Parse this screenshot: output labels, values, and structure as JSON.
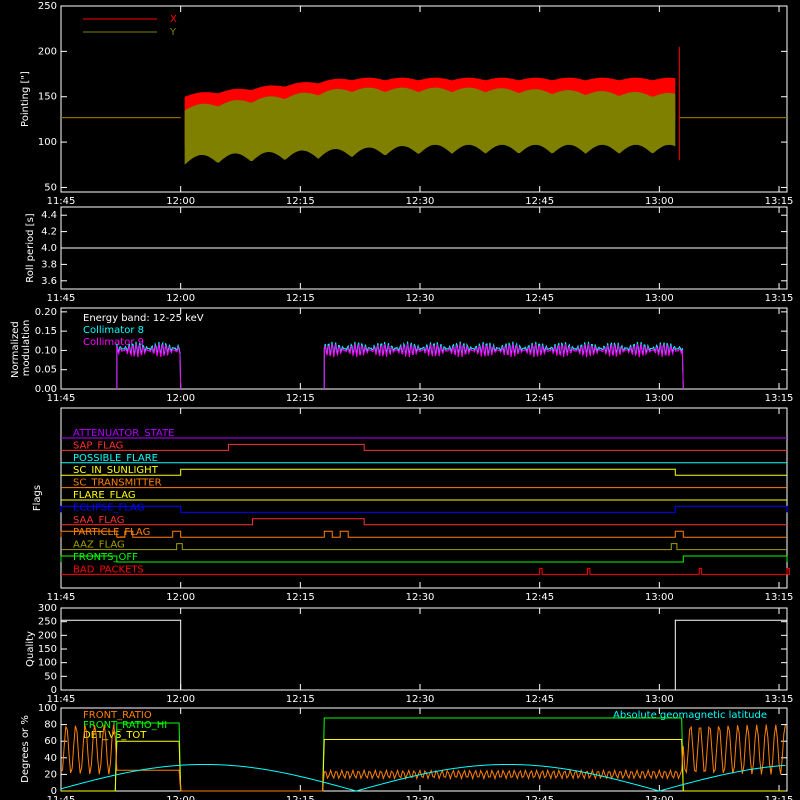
{
  "chart_data": [
    {
      "type": "area",
      "id": "pointing",
      "ylabel": "Pointing [\"]",
      "ylim": [
        45,
        250
      ],
      "yticks": [
        "50",
        "100",
        "150",
        "200",
        "250"
      ],
      "xticks": [
        "11:45",
        "12:00",
        "12:15",
        "12:30",
        "12:45",
        "13:00",
        "13:15"
      ],
      "xlim_minutes": [
        705,
        796
      ],
      "legend": {
        "position": "top-left"
      },
      "series": [
        {
          "name": "X",
          "color": "#ff0000",
          "x": [
            707,
            720,
            721.5,
            725,
            730,
            740,
            750,
            760,
            770,
            782,
            782.5,
            796
          ],
          "ymin": [
            127,
            127,
            80,
            100,
            110,
            113,
            118,
            120,
            120,
            118,
            127,
            127
          ],
          "ymax": [
            127,
            127,
            147,
            165,
            170,
            168,
            170,
            170,
            168,
            170,
            127,
            127
          ]
        },
        {
          "name": "Y",
          "color": "#7f7f00",
          "x": [
            707,
            720,
            721.5,
            725,
            730,
            740,
            750,
            760,
            770,
            782,
            782.5,
            796
          ],
          "ymin": [
            127,
            127,
            80,
            70,
            85,
            90,
            92,
            90,
            88,
            85,
            127,
            127
          ],
          "ymax": [
            127,
            127,
            145,
            150,
            155,
            158,
            160,
            158,
            150,
            140,
            127,
            127
          ]
        }
      ]
    },
    {
      "type": "line",
      "id": "roll",
      "ylabel": "Roll period [s]",
      "ylim": [
        3.5,
        4.5
      ],
      "yticks": [
        "3.6",
        "3.8",
        "4.0",
        "4.2",
        "4.4"
      ],
      "xticks": [
        "11:45",
        "12:00",
        "12:15",
        "12:30",
        "12:45",
        "13:00",
        "13:15"
      ],
      "series": [
        {
          "name": "",
          "color": "#ffffff",
          "value": 4.0
        }
      ]
    },
    {
      "type": "bar",
      "id": "modulation",
      "ylabel": "Normalized modulation",
      "ylim": [
        0,
        0.21
      ],
      "yticks": [
        "0.00",
        "0.05",
        "0.10",
        "0.15",
        "0.20"
      ],
      "xticks": [
        "11:45",
        "12:00",
        "12:15",
        "12:30",
        "12:45",
        "13:00",
        "13:15"
      ],
      "annotation": "Energy band: 12-25 keV",
      "series": [
        {
          "name": "Collimator 8",
          "color": "#00ffff",
          "segments": [
            [
              712,
              720
            ],
            [
              738,
              783
            ]
          ],
          "level": 0.105
        },
        {
          "name": "Collimator 9",
          "color": "#ff00ff",
          "segments": [
            [
              712,
              720
            ],
            [
              738,
              783
            ]
          ],
          "level": 0.1
        }
      ]
    },
    {
      "type": "table",
      "id": "flags",
      "ylabel": "Flags",
      "xticks": [
        "11:45",
        "12:00",
        "12:15",
        "12:30",
        "12:45",
        "13:00",
        "13:15"
      ],
      "flags": [
        {
          "name": "ATTENUATOR_STATE",
          "color": "#b000ff",
          "on": []
        },
        {
          "name": "SAP_FLAG",
          "color": "#ff3030",
          "on": [
            [
              726,
              743
            ]
          ]
        },
        {
          "name": "POSSIBLE_FLARE",
          "color": "#00ffff",
          "on": []
        },
        {
          "name": "SC_IN_SUNLIGHT",
          "color": "#ffff00",
          "on": [
            [
              720,
              782
            ]
          ]
        },
        {
          "name": "SC_TRANSMITTER",
          "color": "#ff8000",
          "on": []
        },
        {
          "name": "FLARE_FLAG",
          "color": "#ffff00",
          "on": []
        },
        {
          "name": "ECLIPSE_FLAG",
          "color": "#0000ff",
          "on": [
            [
              705,
              720
            ],
            [
              782,
              796
            ]
          ]
        },
        {
          "name": "SAA_FLAG",
          "color": "#ff3030",
          "on": [
            [
              729,
              743
            ]
          ]
        },
        {
          "name": "PARTICLE_FLAG",
          "color": "#ff8000",
          "on": [
            [
              705,
              712
            ],
            [
              713,
              714
            ],
            [
              719,
              720
            ],
            [
              738,
              739
            ],
            [
              740,
              741
            ],
            [
              782,
              783
            ]
          ]
        },
        {
          "name": "AAZ_FLAG",
          "color": "#a0a000",
          "on": [
            [
              719.5,
              720.2
            ],
            [
              781.5,
              782.2
            ]
          ]
        },
        {
          "name": "FRONTS_OFF",
          "color": "#00ff00",
          "on": [
            [
              705,
              712
            ],
            [
              783,
              796
            ]
          ]
        },
        {
          "name": "BAD_PACKETS",
          "color": "#ff0000",
          "on": [
            [
              765,
              765.3
            ],
            [
              771,
              771.3
            ],
            [
              785,
              785.3
            ],
            [
              796,
              796.3
            ]
          ]
        }
      ]
    },
    {
      "type": "line",
      "id": "quality",
      "ylabel": "Quality",
      "ylim": [
        0,
        300
      ],
      "yticks": [
        "0",
        "50",
        "100",
        "150",
        "200",
        "250",
        "300"
      ],
      "xticks": [
        "11:45",
        "12:00",
        "12:15",
        "12:30",
        "12:45",
        "13:00",
        "13:15"
      ],
      "series": [
        {
          "name": "",
          "color": "#ffffff",
          "x": [
            705,
            720,
            720,
            782,
            782,
            796
          ],
          "y": [
            255,
            255,
            0,
            0,
            255,
            255
          ]
        }
      ]
    },
    {
      "type": "line",
      "id": "ratios",
      "ylabel": "Degrees or %",
      "ylim": [
        0,
        100
      ],
      "yticks": [
        "0",
        "20",
        "40",
        "60",
        "80",
        "100"
      ],
      "xticks": [
        "11:45",
        "12:00",
        "12:15",
        "12:30",
        "12:45",
        "13:00",
        "13:15"
      ],
      "legend_right": "Absolute geomagnetic latitude",
      "series": [
        {
          "name": "FRONT_RATIO",
          "color": "#ff8000"
        },
        {
          "name": "FRONT_RATIO_HI",
          "color": "#00ff00"
        },
        {
          "name": "DET_VS_TOT",
          "color": "#ffff00"
        }
      ]
    }
  ]
}
